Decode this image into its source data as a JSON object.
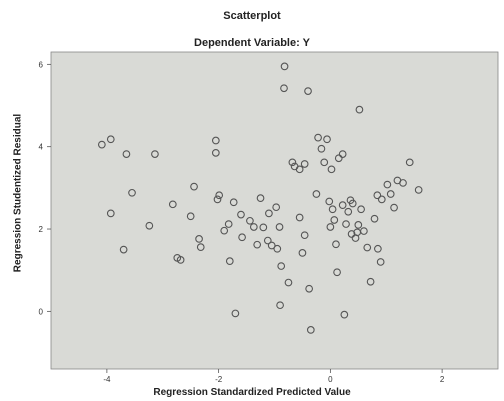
{
  "chart_data": {
    "type": "scatter",
    "title": "Scatterplot",
    "subtitle": "Dependent Variable: Y",
    "xlabel": "Regression Standardized Predicted Value",
    "ylabel": "Regression Studentized Residual",
    "xlim": [
      -5.0,
      3.0
    ],
    "ylim": [
      -1.4,
      6.3
    ],
    "x_ticks": [
      -4,
      -2,
      0,
      2
    ],
    "y_ticks": [
      0,
      2,
      4,
      6
    ],
    "grid": false,
    "colors": {
      "plot_bg": "#d9dad6",
      "marker": "#555555"
    },
    "points": [
      [
        -4.09,
        4.05
      ],
      [
        -3.93,
        4.18
      ],
      [
        -3.65,
        3.82
      ],
      [
        -3.55,
        2.88
      ],
      [
        -3.14,
        3.82
      ],
      [
        -3.93,
        2.38
      ],
      [
        -3.7,
        1.5
      ],
      [
        -3.24,
        2.08
      ],
      [
        -2.82,
        2.6
      ],
      [
        -2.74,
        1.3
      ],
      [
        -2.68,
        1.25
      ],
      [
        -2.5,
        2.31
      ],
      [
        -2.44,
        3.03
      ],
      [
        -2.35,
        1.76
      ],
      [
        -2.32,
        1.56
      ],
      [
        -2.05,
        4.15
      ],
      [
        -2.05,
        3.85
      ],
      [
        -2.02,
        2.72
      ],
      [
        -1.99,
        2.82
      ],
      [
        -1.9,
        1.96
      ],
      [
        -1.8,
        1.22
      ],
      [
        -1.73,
        2.65
      ],
      [
        -1.82,
        2.12
      ],
      [
        -1.58,
        1.8
      ],
      [
        -1.44,
        2.2
      ],
      [
        -1.37,
        2.05
      ],
      [
        -1.31,
        1.62
      ],
      [
        -1.25,
        2.75
      ],
      [
        -1.2,
        2.04
      ],
      [
        -1.12,
        1.72
      ],
      [
        -1.05,
        1.6
      ],
      [
        -0.97,
        2.53
      ],
      [
        -0.91,
        2.05
      ],
      [
        -0.88,
        1.1
      ],
      [
        -0.82,
        5.95
      ],
      [
        -0.83,
        5.42
      ],
      [
        -0.75,
        0.7
      ],
      [
        -0.68,
        3.62
      ],
      [
        -0.64,
        3.52
      ],
      [
        -0.55,
        3.45
      ],
      [
        -0.55,
        2.28
      ],
      [
        -0.5,
        1.42
      ],
      [
        -0.46,
        1.85
      ],
      [
        -0.46,
        3.58
      ],
      [
        -0.4,
        5.35
      ],
      [
        -0.38,
        0.55
      ],
      [
        -0.22,
        4.22
      ],
      [
        -0.16,
        3.95
      ],
      [
        -0.11,
        3.62
      ],
      [
        -0.06,
        4.18
      ],
      [
        -0.02,
        2.67
      ],
      [
        0.02,
        3.45
      ],
      [
        0.04,
        2.48
      ],
      [
        0.07,
        2.22
      ],
      [
        0.1,
        1.63
      ],
      [
        0.12,
        0.95
      ],
      [
        0.15,
        3.72
      ],
      [
        0.22,
        3.82
      ],
      [
        0.22,
        2.58
      ],
      [
        0.28,
        2.12
      ],
      [
        0.32,
        2.42
      ],
      [
        0.36,
        2.7
      ],
      [
        0.38,
        1.88
      ],
      [
        0.4,
        2.62
      ],
      [
        0.45,
        1.78
      ],
      [
        0.48,
        1.92
      ],
      [
        0.5,
        2.1
      ],
      [
        0.52,
        4.9
      ],
      [
        0.55,
        2.48
      ],
      [
        0.6,
        1.95
      ],
      [
        0.66,
        1.55
      ],
      [
        0.72,
        0.72
      ],
      [
        0.79,
        2.25
      ],
      [
        0.85,
        1.52
      ],
      [
        0.9,
        1.2
      ],
      [
        0.92,
        2.72
      ],
      [
        1.02,
        3.08
      ],
      [
        1.08,
        2.85
      ],
      [
        1.14,
        2.52
      ],
      [
        1.2,
        3.18
      ],
      [
        1.3,
        3.12
      ],
      [
        1.42,
        3.62
      ],
      [
        1.58,
        2.95
      ],
      [
        -1.1,
        2.38
      ],
      [
        -0.9,
        0.15
      ],
      [
        -1.7,
        -0.05
      ],
      [
        -0.35,
        -0.45
      ],
      [
        0.25,
        -0.08
      ],
      [
        -0.95,
        1.52
      ],
      [
        0.0,
        2.05
      ],
      [
        0.84,
        2.82
      ],
      [
        -1.6,
        2.35
      ],
      [
        -0.25,
        2.85
      ]
    ]
  }
}
